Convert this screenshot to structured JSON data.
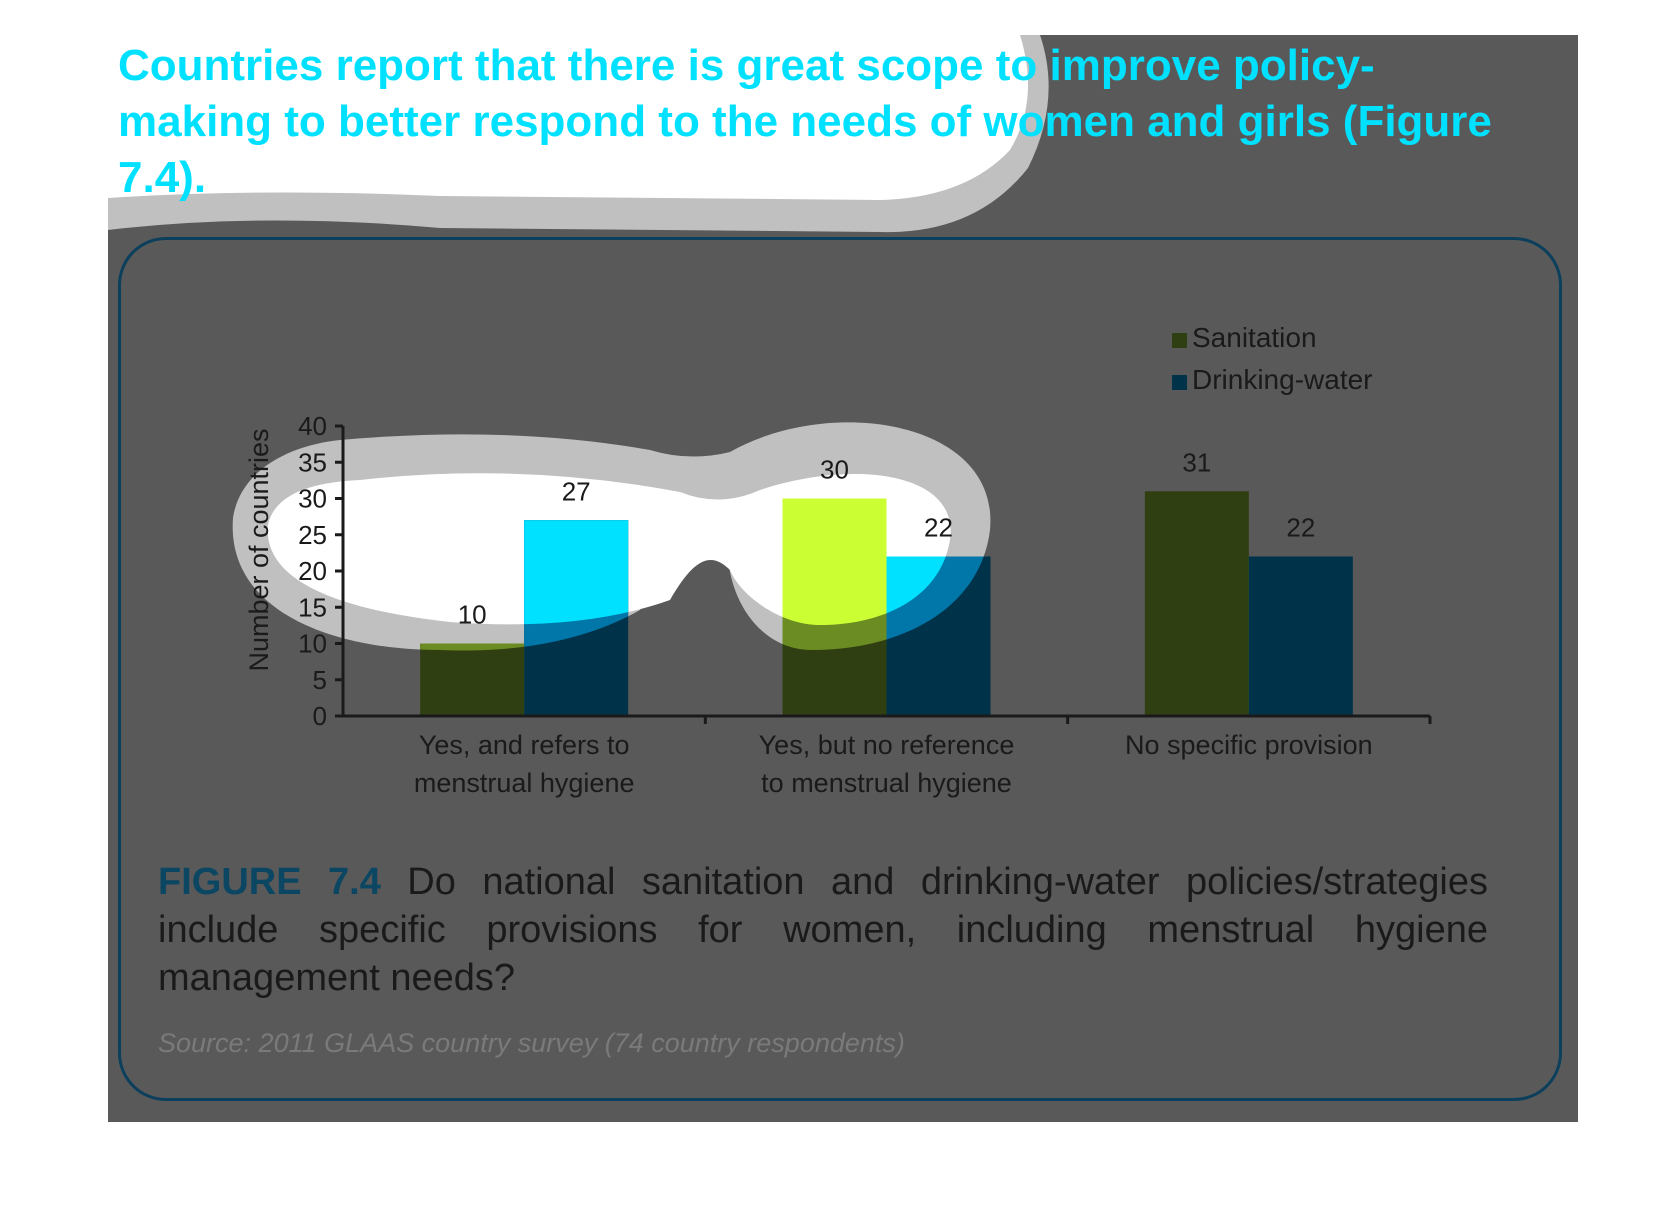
{
  "headline": "Countries report that there is great scope to improve policy-making to better respond to the needs of women and girls (Figure 7.4).",
  "caption": {
    "label": "FIGURE 7.4",
    "text": "Do national sanitation and drinking-water policies/strategies include specific provisions for women, including menstrual hygiene management needs?"
  },
  "source_note": "Source: 2011 GLAAS country survey (74 country respondents)",
  "colors": {
    "panel": "#595959",
    "sanitation": "#2f3f12",
    "drinking_water": "#003349",
    "sanitation_highlight": "#ccff33",
    "drinking_water_highlight": "#00e0ff",
    "highlight_ring": "#c0c0c0",
    "frame": "#0b3f5c",
    "axis": "#1a1a1a",
    "text_dark": "#1a1a1a",
    "caption_label": "#0b4663"
  },
  "chart_data": {
    "type": "bar",
    "ylabel": "Number of countries",
    "xlabel": "",
    "ylim": [
      0,
      40
    ],
    "yticks": [
      0,
      5,
      10,
      15,
      20,
      25,
      30,
      35,
      40
    ],
    "categories": [
      [
        "Yes, and refers to",
        "menstrual hygiene"
      ],
      [
        "Yes, but no reference",
        "to menstrual hygiene"
      ],
      [
        "No specific provision"
      ]
    ],
    "series": [
      {
        "name": "Sanitation",
        "values": [
          10,
          30,
          31
        ],
        "color": "#2f3f12"
      },
      {
        "name": "Drinking-water",
        "values": [
          27,
          22,
          22
        ],
        "color": "#003349"
      }
    ],
    "data_labels": true,
    "legend_position": "top-right",
    "grid": false
  }
}
